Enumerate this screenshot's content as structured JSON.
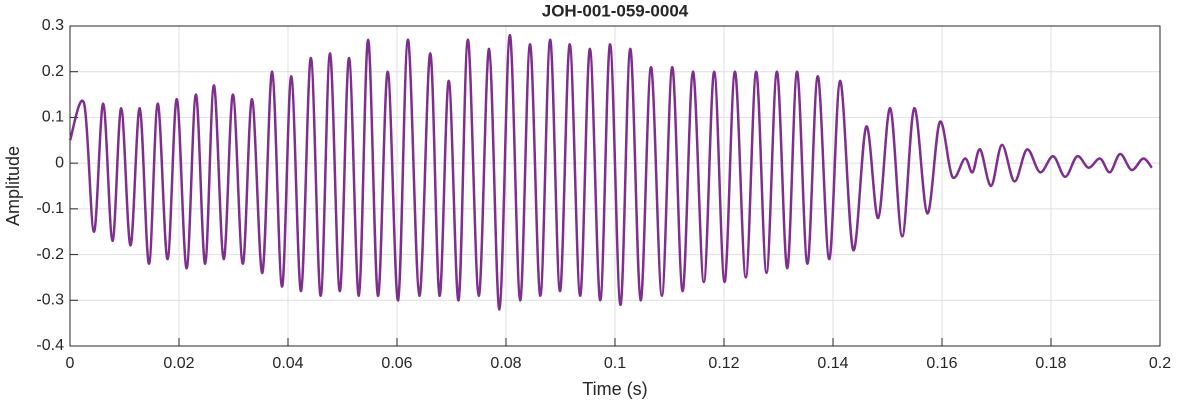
{
  "chart_data": {
    "type": "line",
    "title": "JOH-001-059-0004",
    "x_label": "Time (s)",
    "y_label": "Amplitude",
    "x": [
      0,
      0.0026,
      0.0044,
      0.0061,
      0.0078,
      0.0094,
      0.0111,
      0.0128,
      0.0145,
      0.0161,
      0.0179,
      0.0196,
      0.0214,
      0.0231,
      0.0248,
      0.0264,
      0.0282,
      0.0299,
      0.0317,
      0.0334,
      0.0353,
      0.0371,
      0.0389,
      0.0406,
      0.0424,
      0.0442,
      0.046,
      0.0477,
      0.0495,
      0.0512,
      0.053,
      0.0547,
      0.0565,
      0.0583,
      0.0602,
      0.062,
      0.0641,
      0.0661,
      0.0678,
      0.0695,
      0.0713,
      0.073,
      0.075,
      0.0769,
      0.0788,
      0.0807,
      0.0826,
      0.0844,
      0.0863,
      0.0881,
      0.0899,
      0.0917,
      0.0936,
      0.0954,
      0.0973,
      0.0991,
      0.101,
      0.1028,
      0.1047,
      0.1066,
      0.1086,
      0.1105,
      0.1124,
      0.1143,
      0.1163,
      0.1182,
      0.1201,
      0.122,
      0.124,
      0.1259,
      0.1278,
      0.1297,
      0.1316,
      0.1334,
      0.1353,
      0.1372,
      0.1393,
      0.1413,
      0.1437,
      0.1461,
      0.1483,
      0.1505,
      0.1527,
      0.1549,
      0.1573,
      0.1596,
      0.1619,
      0.1642,
      0.1656,
      0.167,
      0.169,
      0.171,
      0.1733,
      0.1756,
      0.178,
      0.1804,
      0.1826,
      0.1848,
      0.1869,
      0.189,
      0.1908,
      0.1927,
      0.1948,
      0.1969,
      0.1985
    ],
    "series": [
      {
        "color": "#7e2f8e",
        "values": [
          0.05,
          0.13,
          -0.15,
          0.13,
          -0.17,
          0.12,
          -0.18,
          0.12,
          -0.22,
          0.13,
          -0.21,
          0.14,
          -0.23,
          0.15,
          -0.22,
          0.17,
          -0.21,
          0.15,
          -0.22,
          0.14,
          -0.24,
          0.2,
          -0.27,
          0.19,
          -0.28,
          0.23,
          -0.29,
          0.24,
          -0.28,
          0.23,
          -0.29,
          0.27,
          -0.29,
          0.2,
          -0.3,
          0.27,
          -0.29,
          0.24,
          -0.29,
          0.18,
          -0.3,
          0.27,
          -0.29,
          0.25,
          -0.32,
          0.28,
          -0.3,
          0.26,
          -0.29,
          0.27,
          -0.28,
          0.26,
          -0.29,
          0.25,
          -0.3,
          0.26,
          -0.31,
          0.25,
          -0.3,
          0.21,
          -0.29,
          0.21,
          -0.28,
          0.2,
          -0.26,
          0.2,
          -0.26,
          0.2,
          -0.25,
          0.2,
          -0.24,
          0.2,
          -0.23,
          0.2,
          -0.22,
          0.19,
          -0.21,
          0.18,
          -0.19,
          0.08,
          -0.12,
          0.12,
          -0.16,
          0.12,
          -0.11,
          0.09,
          -0.03,
          0.01,
          -0.02,
          0.03,
          -0.05,
          0.04,
          -0.04,
          0.03,
          -0.02,
          0.015,
          -0.03,
          0.015,
          -0.01,
          0.01,
          -0.02,
          0.02,
          -0.015,
          0.01,
          -0.01
        ]
      }
    ],
    "xlim": [
      0,
      0.2
    ],
    "xticks": [
      0,
      0.02,
      0.04,
      0.06,
      0.08,
      0.1,
      0.12,
      0.14,
      0.16,
      0.18,
      0.2
    ],
    "ylim": [
      -0.4,
      0.3
    ],
    "yticks": [
      -0.4,
      -0.3,
      -0.2,
      -0.1,
      0,
      0.1,
      0.2,
      0.3
    ],
    "grid": true
  }
}
